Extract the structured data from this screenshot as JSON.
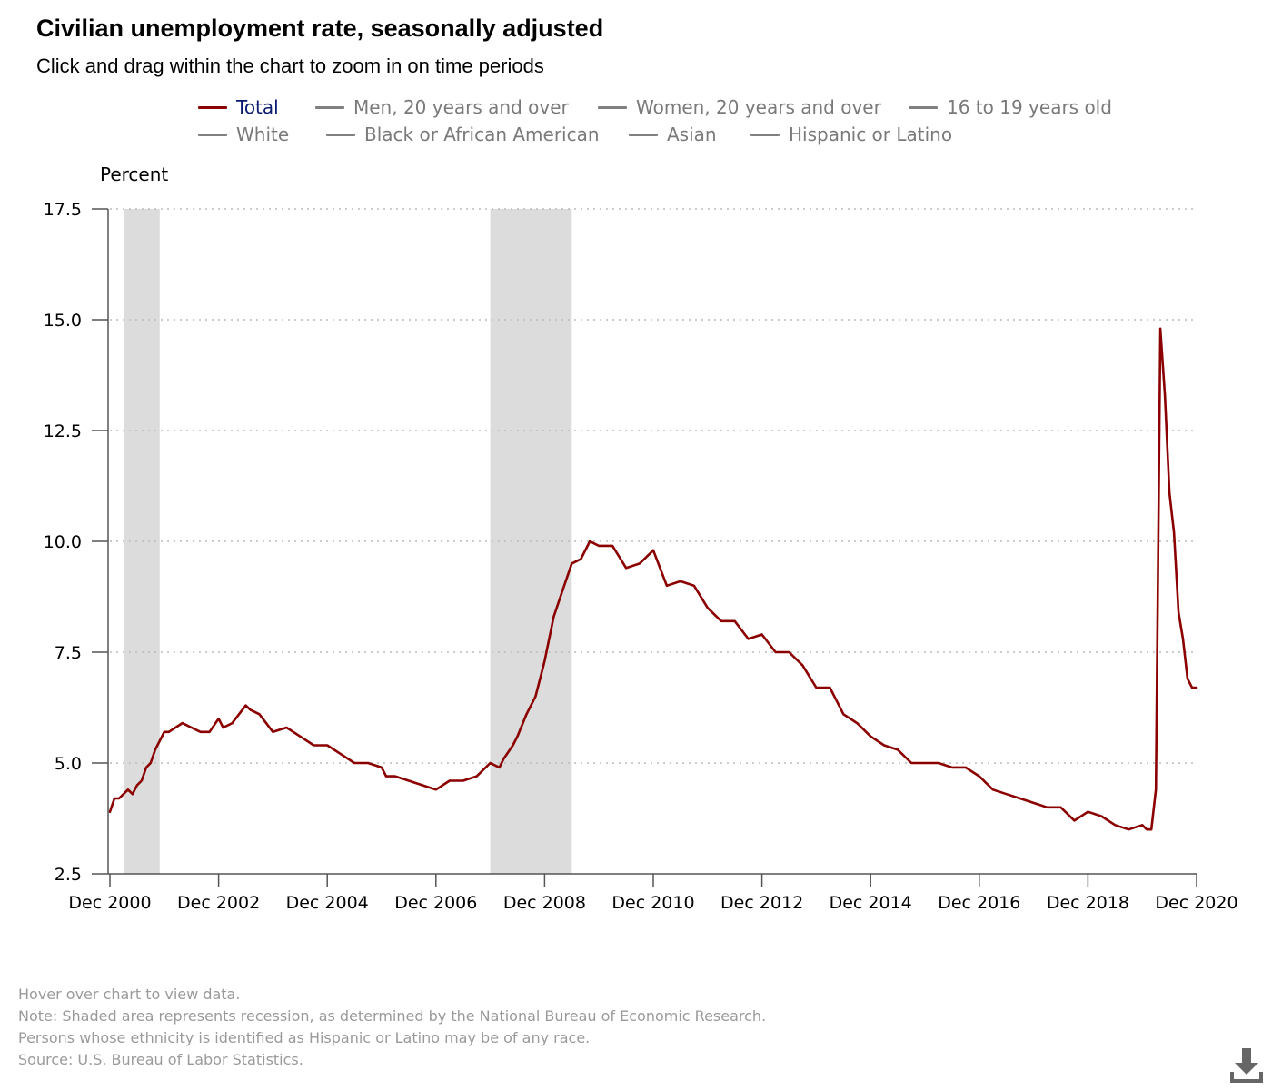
{
  "header": {
    "title": "Civilian unemployment rate, seasonally adjusted",
    "subtitle": "Click and drag within the chart to zoom in on time periods"
  },
  "legend": {
    "items": [
      {
        "label": "Total",
        "active": true
      },
      {
        "label": "Men, 20 years and over",
        "active": false
      },
      {
        "label": "Women, 20 years and over",
        "active": false
      },
      {
        "label": "16 to 19 years old",
        "active": false
      },
      {
        "label": "White",
        "active": false
      },
      {
        "label": "Black or African American",
        "active": false
      },
      {
        "label": "Asian",
        "active": false
      },
      {
        "label": "Hispanic or Latino",
        "active": false
      }
    ]
  },
  "footnotes": [
    "Hover over chart to view data.",
    "Note: Shaded area represents recession, as determined by the National Bureau of Economic Research.",
    "Persons whose ethnicity is identified as Hispanic or Latino may be of any race.",
    "Source: U.S. Bureau of Labor Statistics."
  ],
  "colors": {
    "series_total": "#8b0000",
    "legend_inactive": "#808080",
    "legend_active_text": "#0a1a6e",
    "recession_shade": "#dcdcdc",
    "gridline": "#bbbbbb",
    "footnote_text": "#9a9a9a"
  },
  "icons": {
    "download": "download-icon"
  },
  "chart_data": {
    "type": "line",
    "ylabel": "Percent",
    "xlabel": "",
    "ylim": [
      2.5,
      17.5
    ],
    "yticks": [
      "2.5",
      "5.0",
      "7.5",
      "10.0",
      "12.5",
      "15.0",
      "17.5"
    ],
    "xlim": [
      "2000-12",
      "2020-12"
    ],
    "xticks": [
      "Dec 2000",
      "Dec 2002",
      "Dec 2004",
      "Dec 2006",
      "Dec 2008",
      "Dec 2010",
      "Dec 2012",
      "Dec 2014",
      "Dec 2016",
      "Dec 2018",
      "Dec 2020"
    ],
    "grid": "horizontal-dotted",
    "recessions": [
      {
        "start": "2001-03",
        "end": "2001-11"
      },
      {
        "start": "2007-12",
        "end": "2009-06"
      }
    ],
    "series": [
      {
        "name": "Total",
        "x": [
          "2000-12",
          "2001-01",
          "2001-02",
          "2001-04",
          "2001-05",
          "2001-06",
          "2001-07",
          "2001-08",
          "2001-09",
          "2001-10",
          "2001-11",
          "2001-12",
          "2002-01",
          "2002-04",
          "2002-06",
          "2002-08",
          "2002-10",
          "2002-12",
          "2003-01",
          "2003-03",
          "2003-06",
          "2003-07",
          "2003-09",
          "2003-12",
          "2004-03",
          "2004-06",
          "2004-09",
          "2004-12",
          "2005-03",
          "2005-06",
          "2005-09",
          "2005-12",
          "2006-01",
          "2006-03",
          "2006-06",
          "2006-09",
          "2006-12",
          "2007-03",
          "2007-06",
          "2007-09",
          "2007-12",
          "2008-02",
          "2008-03",
          "2008-05",
          "2008-06",
          "2008-08",
          "2008-10",
          "2008-12",
          "2009-02",
          "2009-04",
          "2009-06",
          "2009-08",
          "2009-10",
          "2009-12",
          "2010-03",
          "2010-06",
          "2010-09",
          "2010-12",
          "2011-03",
          "2011-06",
          "2011-09",
          "2011-12",
          "2012-03",
          "2012-06",
          "2012-09",
          "2012-12",
          "2013-03",
          "2013-06",
          "2013-09",
          "2013-12",
          "2014-03",
          "2014-06",
          "2014-09",
          "2014-12",
          "2015-03",
          "2015-06",
          "2015-09",
          "2015-12",
          "2016-03",
          "2016-06",
          "2016-09",
          "2016-12",
          "2017-03",
          "2017-06",
          "2017-09",
          "2017-12",
          "2018-03",
          "2018-06",
          "2018-09",
          "2018-12",
          "2019-03",
          "2019-06",
          "2019-09",
          "2019-12",
          "2020-01",
          "2020-02",
          "2020-03",
          "2020-04",
          "2020-05",
          "2020-06",
          "2020-07",
          "2020-08",
          "2020-09",
          "2020-10",
          "2020-11",
          "2020-12"
        ],
        "values": [
          3.9,
          4.2,
          4.2,
          4.4,
          4.3,
          4.5,
          4.6,
          4.9,
          5.0,
          5.3,
          5.5,
          5.7,
          5.7,
          5.9,
          5.8,
          5.7,
          5.7,
          6.0,
          5.8,
          5.9,
          6.3,
          6.2,
          6.1,
          5.7,
          5.8,
          5.6,
          5.4,
          5.4,
          5.2,
          5.0,
          5.0,
          4.9,
          4.7,
          4.7,
          4.6,
          4.5,
          4.4,
          4.6,
          4.6,
          4.7,
          5.0,
          4.9,
          5.1,
          5.4,
          5.6,
          6.1,
          6.5,
          7.3,
          8.3,
          8.9,
          9.5,
          9.6,
          10.0,
          9.9,
          9.9,
          9.4,
          9.5,
          9.8,
          9.0,
          9.1,
          9.0,
          8.5,
          8.2,
          8.2,
          7.8,
          7.9,
          7.5,
          7.5,
          7.2,
          6.7,
          6.7,
          6.1,
          5.9,
          5.6,
          5.4,
          5.3,
          5.0,
          5.0,
          5.0,
          4.9,
          4.9,
          4.7,
          4.4,
          4.3,
          4.2,
          4.1,
          4.0,
          4.0,
          3.7,
          3.9,
          3.8,
          3.6,
          3.5,
          3.6,
          3.5,
          3.5,
          4.4,
          14.8,
          13.3,
          11.1,
          10.2,
          8.4,
          7.8,
          6.9,
          6.7,
          6.7
        ]
      }
    ]
  }
}
